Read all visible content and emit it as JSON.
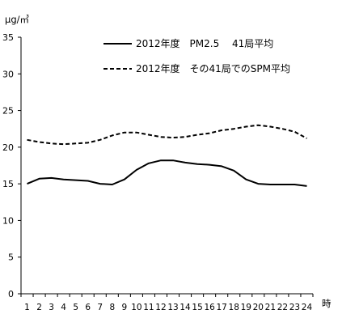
{
  "chart_data": {
    "type": "line",
    "ylabel": "μg/㎥",
    "xlabel": "時",
    "ylim": [
      0,
      35
    ],
    "yticks": [
      0,
      5,
      10,
      15,
      20,
      25,
      30,
      35
    ],
    "x": [
      1,
      2,
      3,
      4,
      5,
      6,
      7,
      8,
      9,
      10,
      11,
      12,
      13,
      14,
      15,
      16,
      17,
      18,
      19,
      20,
      21,
      22,
      23,
      24
    ],
    "grid": false,
    "legend_position": "top-right",
    "series": [
      {
        "name": "2012年度　PM2.5　 41局平均",
        "style": "solid",
        "color": "#000000",
        "values": [
          15.0,
          15.7,
          15.8,
          15.6,
          15.5,
          15.4,
          15.0,
          14.9,
          15.6,
          16.9,
          17.8,
          18.2,
          18.2,
          17.9,
          17.7,
          17.6,
          17.4,
          16.8,
          15.6,
          15.0,
          14.9,
          14.9,
          14.9,
          14.7
        ]
      },
      {
        "name": "2012年度　その41局でのSPM平均",
        "style": "dashed",
        "color": "#000000",
        "values": [
          21.0,
          20.7,
          20.5,
          20.4,
          20.5,
          20.6,
          21.0,
          21.6,
          22.0,
          22.0,
          21.7,
          21.4,
          21.3,
          21.4,
          21.7,
          21.9,
          22.3,
          22.5,
          22.8,
          23.0,
          22.8,
          22.5,
          22.1,
          21.2
        ]
      }
    ]
  }
}
